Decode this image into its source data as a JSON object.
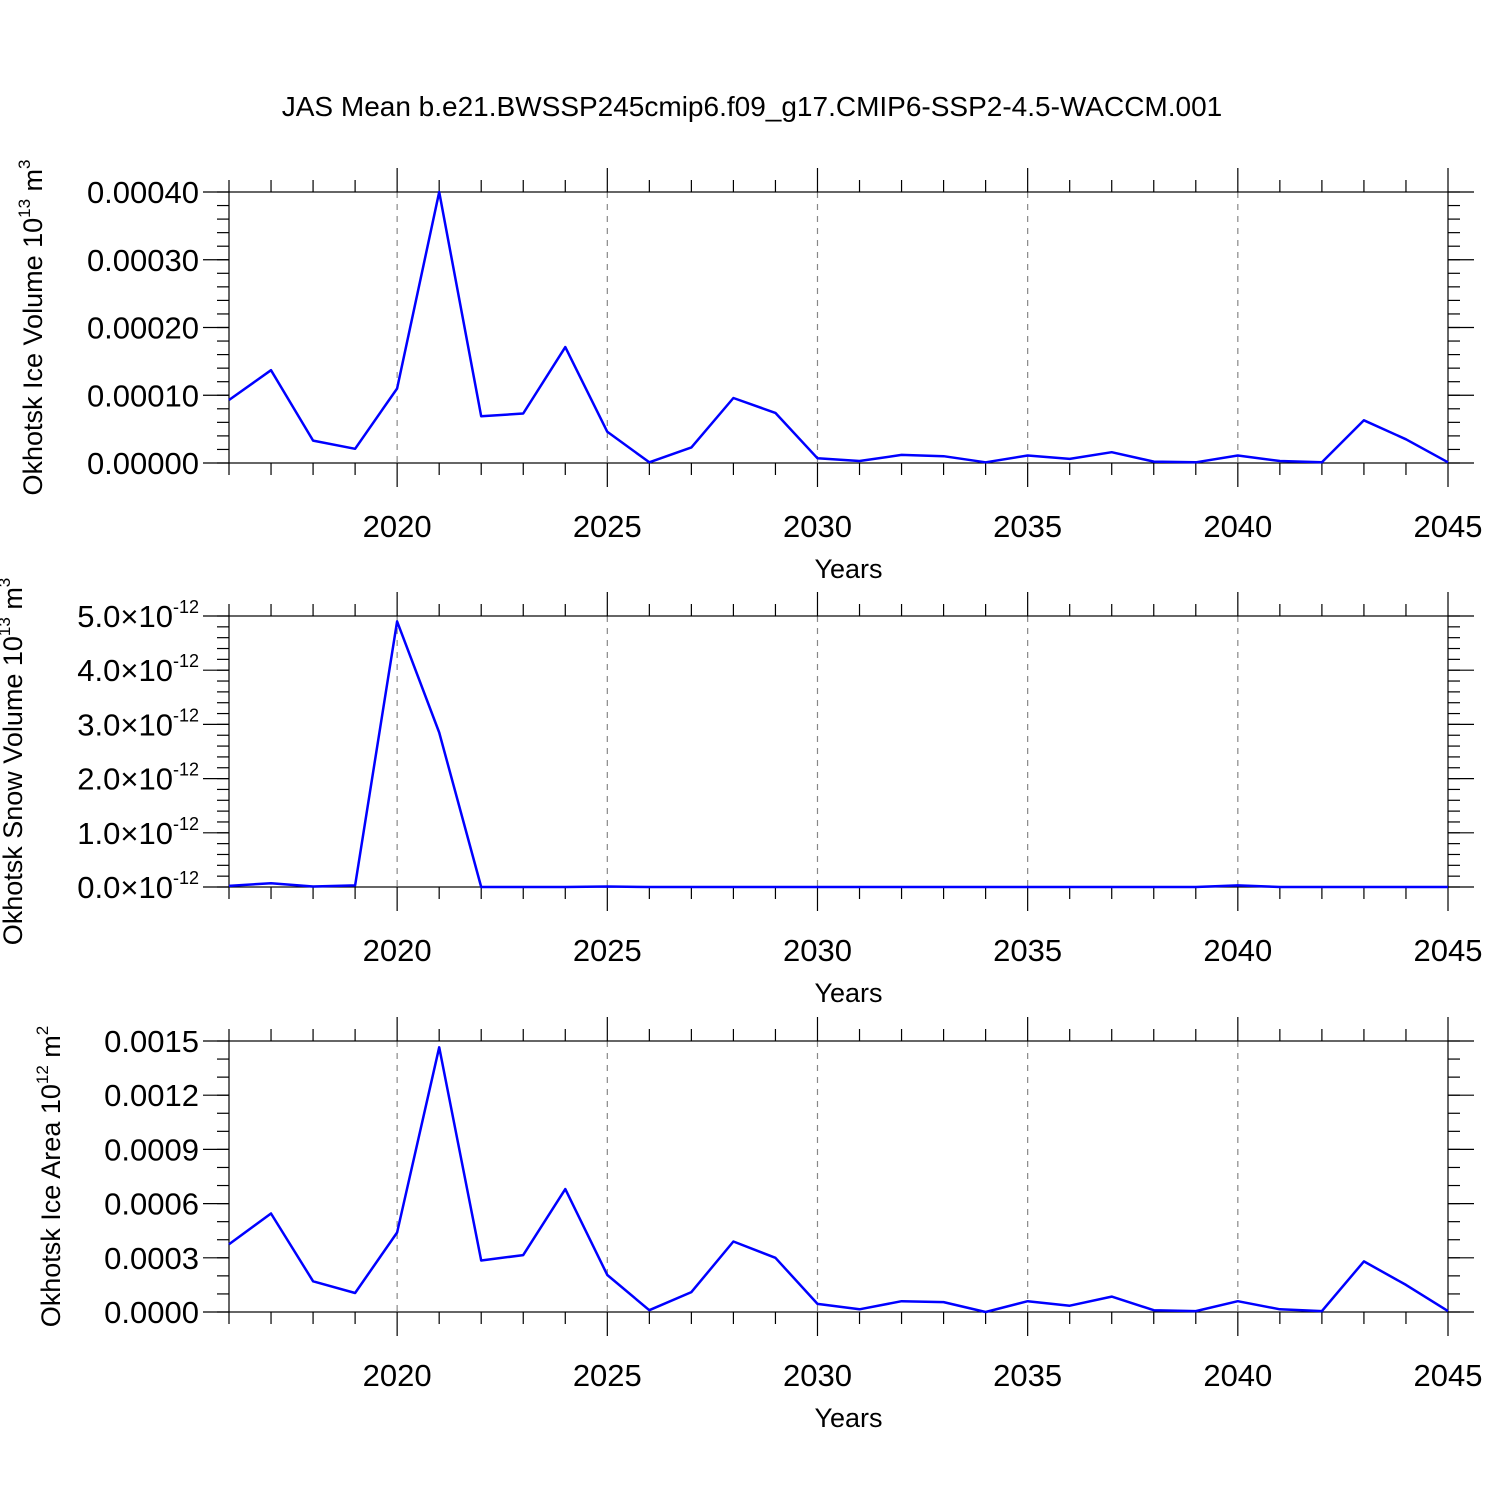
{
  "title": "JAS Mean b.e21.BWSSP245cmip6.f09_g17.CMIP6-SSP2-4.5-WACCM.001",
  "colors": {
    "series": "#0000ff",
    "grid": "#888888",
    "axis": "#000000"
  },
  "chart_data": [
    {
      "type": "line",
      "ylabel": "Okhotsk Ice Volume 10",
      "ylabel_exp": "13",
      "ylabel_unit": "m",
      "ylabel_unit_exp": "3",
      "xlabel": "Years",
      "xlim": [
        2016,
        2045
      ],
      "ylim": [
        0,
        0.0004
      ],
      "x_ticks": [
        "2020",
        "2025",
        "2030",
        "2035",
        "2040",
        "2045"
      ],
      "y_ticks": [
        {
          "value": 0,
          "label": "0.00000"
        },
        {
          "value": 0.0001,
          "label": "0.00010"
        },
        {
          "value": 0.0002,
          "label": "0.00020"
        },
        {
          "value": 0.0003,
          "label": "0.00030"
        },
        {
          "value": 0.0004,
          "label": "0.00040"
        }
      ],
      "y_minor_step": 2e-05,
      "grid_x": true,
      "x": [
        2016,
        2017,
        2018,
        2019,
        2020,
        2021,
        2022,
        2023,
        2024,
        2025,
        2026,
        2027,
        2028,
        2029,
        2030,
        2031,
        2032,
        2033,
        2034,
        2035,
        2036,
        2037,
        2038,
        2039,
        2040,
        2041,
        2042,
        2043,
        2044,
        2045
      ],
      "values": [
        9.3e-05,
        0.000137,
        3.3e-05,
        2.1e-05,
        0.00011,
        0.0004,
        6.9e-05,
        7.3e-05,
        0.000171,
        4.6e-05,
        1e-06,
        2.3e-05,
        9.6e-05,
        7.4e-05,
        7e-06,
        3e-06,
        1.2e-05,
        1e-05,
        1e-06,
        1.1e-05,
        6e-06,
        1.6e-05,
        2e-06,
        1e-06,
        1.1e-05,
        3e-06,
        1e-06,
        6.3e-05,
        3.5e-05,
        1e-06
      ]
    },
    {
      "type": "line",
      "ylabel": "Okhotsk Snow Volume 10",
      "ylabel_exp": "13",
      "ylabel_unit": "m",
      "ylabel_unit_exp": "3",
      "xlabel": "Years",
      "xlim": [
        2016,
        2045
      ],
      "ylim": [
        0,
        5e-12
      ],
      "x_ticks": [
        "2020",
        "2025",
        "2030",
        "2035",
        "2040",
        "2045"
      ],
      "y_ticks": [
        {
          "value": 0,
          "mantissa": "0.0",
          "exponent": "-12"
        },
        {
          "value": 1e-12,
          "mantissa": "1.0",
          "exponent": "-12"
        },
        {
          "value": 2e-12,
          "mantissa": "2.0",
          "exponent": "-12"
        },
        {
          "value": 3e-12,
          "mantissa": "3.0",
          "exponent": "-12"
        },
        {
          "value": 4e-12,
          "mantissa": "4.0",
          "exponent": "-12"
        },
        {
          "value": 5e-12,
          "mantissa": "5.0",
          "exponent": "-12"
        }
      ],
      "y_sci_times": "×10",
      "y_minor_step": 2e-13,
      "grid_x": true,
      "x": [
        2016,
        2017,
        2018,
        2019,
        2020,
        2021,
        2022,
        2023,
        2024,
        2025,
        2026,
        2027,
        2028,
        2029,
        2030,
        2031,
        2032,
        2033,
        2034,
        2035,
        2036,
        2037,
        2038,
        2039,
        2040,
        2041,
        2042,
        2043,
        2044,
        2045
      ],
      "values": [
        2e-14,
        7e-14,
        1e-14,
        3e-14,
        4.9e-12,
        2.85e-12,
        0,
        0,
        0,
        1e-14,
        0,
        0,
        0,
        0,
        0,
        0,
        0,
        0,
        0,
        0,
        0,
        0,
        0,
        0,
        3e-14,
        0,
        0,
        0,
        0,
        0
      ]
    },
    {
      "type": "line",
      "ylabel": "Okhotsk Ice Area 10",
      "ylabel_exp": "12",
      "ylabel_unit": "m",
      "ylabel_unit_exp": "2",
      "xlabel": "Years",
      "xlim": [
        2016,
        2045
      ],
      "ylim": [
        0,
        0.0015
      ],
      "x_ticks": [
        "2020",
        "2025",
        "2030",
        "2035",
        "2040",
        "2045"
      ],
      "y_ticks": [
        {
          "value": 0,
          "label": "0.0000"
        },
        {
          "value": 0.0003,
          "label": "0.0003"
        },
        {
          "value": 0.0006,
          "label": "0.0006"
        },
        {
          "value": 0.0009,
          "label": "0.0009"
        },
        {
          "value": 0.0012,
          "label": "0.0012"
        },
        {
          "value": 0.0015,
          "label": "0.0015"
        }
      ],
      "y_minor_step": 0.0001,
      "grid_x": true,
      "x": [
        2016,
        2017,
        2018,
        2019,
        2020,
        2021,
        2022,
        2023,
        2024,
        2025,
        2026,
        2027,
        2028,
        2029,
        2030,
        2031,
        2032,
        2033,
        2034,
        2035,
        2036,
        2037,
        2038,
        2039,
        2040,
        2041,
        2042,
        2043,
        2044,
        2045
      ],
      "values": [
        0.000375,
        0.000545,
        0.00017,
        0.000105,
        0.00044,
        0.001465,
        0.000285,
        0.000315,
        0.00068,
        0.000205,
        1e-05,
        0.00011,
        0.00039,
        0.0003,
        4.5e-05,
        1.5e-05,
        6e-05,
        5.5e-05,
        0.0,
        6e-05,
        3.5e-05,
        8.5e-05,
        1e-05,
        5e-06,
        6e-05,
        1.5e-05,
        5e-06,
        0.00028,
        0.00015,
        5e-06
      ]
    }
  ]
}
